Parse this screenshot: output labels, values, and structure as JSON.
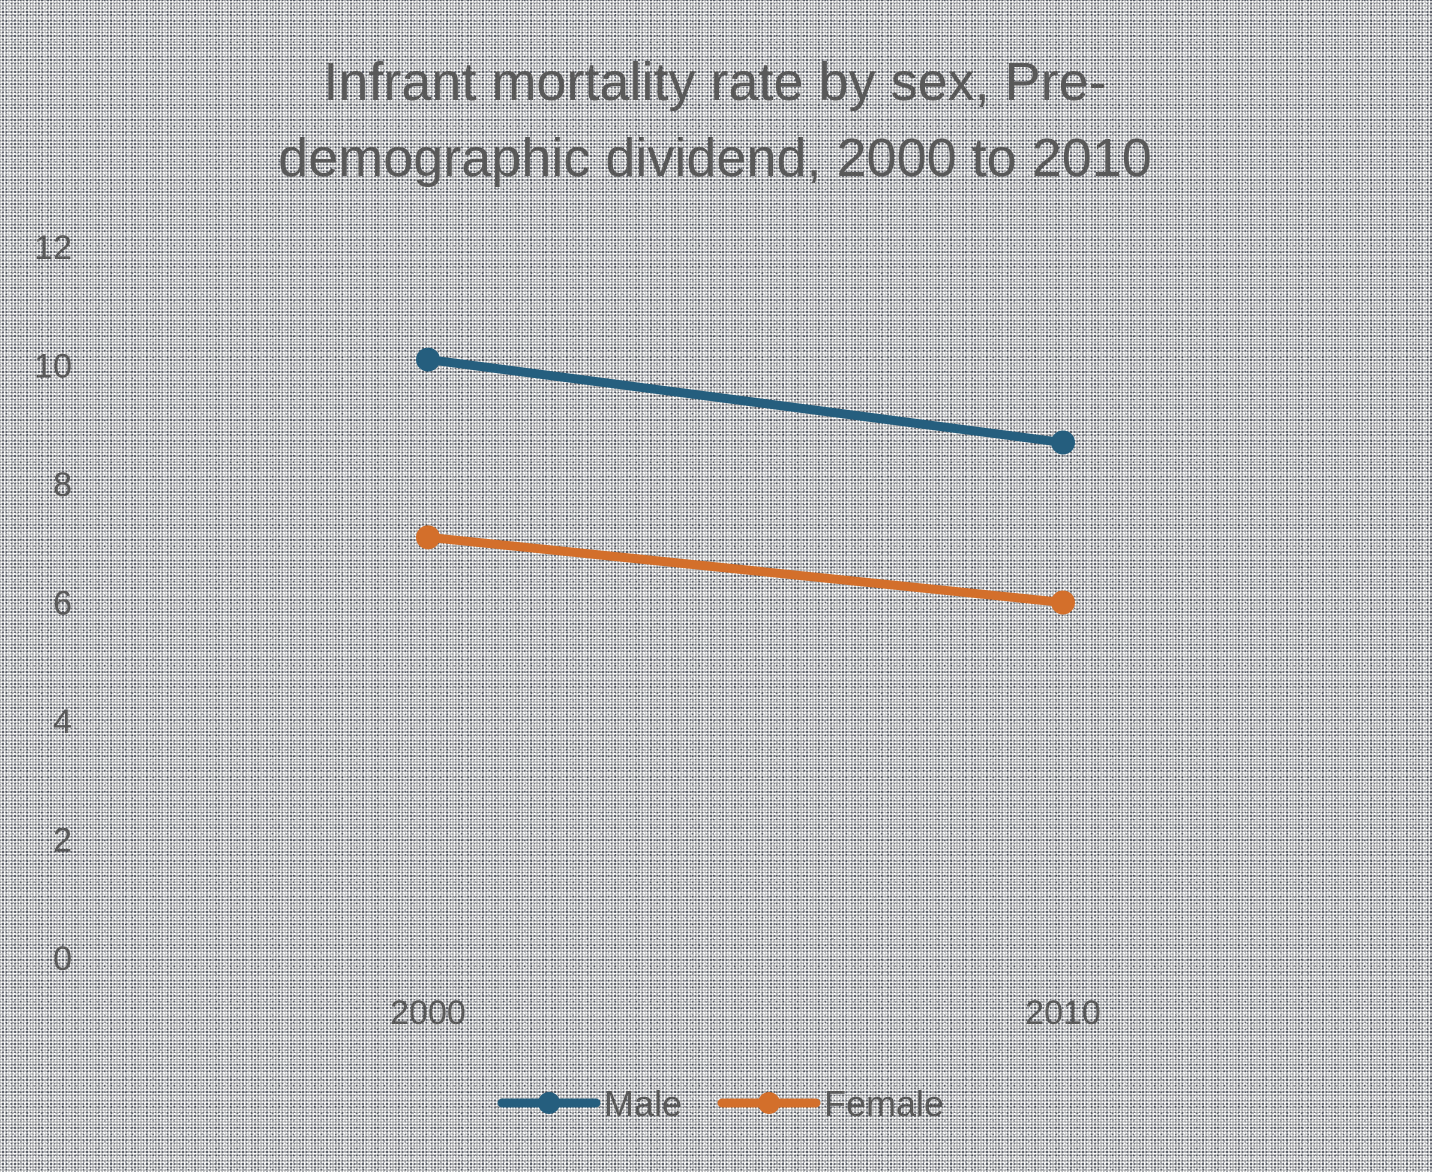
{
  "chart_data": {
    "type": "line",
    "title": "Infrant mortality rate by sex, Pre-demographic dividend, 2000 to 2010",
    "title_lines": [
      "Infrant mortality rate by sex, Pre-",
      "demographic dividend, 2000 to 2010"
    ],
    "categories": [
      "2000",
      "2010"
    ],
    "series": [
      {
        "name": "Male",
        "values": [
          10.1,
          8.7
        ],
        "color": "#255e7e"
      },
      {
        "name": "Female",
        "values": [
          7.1,
          6.0
        ],
        "color": "#d36f2b"
      }
    ],
    "ylim": [
      0,
      12
    ],
    "yticks": [
      0,
      2,
      4,
      6,
      8,
      10,
      12
    ],
    "grid": false,
    "legend": "bottom",
    "xlabel": "",
    "ylabel": ""
  }
}
